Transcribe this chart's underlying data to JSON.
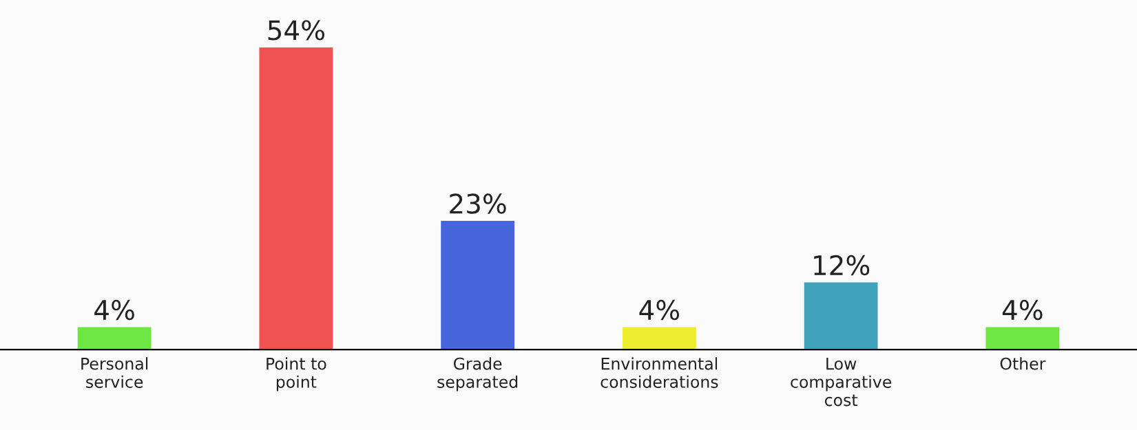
{
  "chart_data": {
    "type": "bar",
    "categories": [
      "Personal\nservice",
      "Point to\npoint",
      "Grade\nseparated",
      "Environmental\nconsiderations",
      "Low\ncomparative\ncost",
      "Other"
    ],
    "values": [
      4,
      54,
      23,
      4,
      12,
      4
    ],
    "colors": [
      "#6ee641",
      "#f05252",
      "#4866db",
      "#eced2e",
      "#40a1ba",
      "#6ee641"
    ],
    "value_labels": [
      "4%",
      "54%",
      "23%",
      "4%",
      "12%",
      "4%"
    ],
    "grid": false,
    "legend": false
  }
}
